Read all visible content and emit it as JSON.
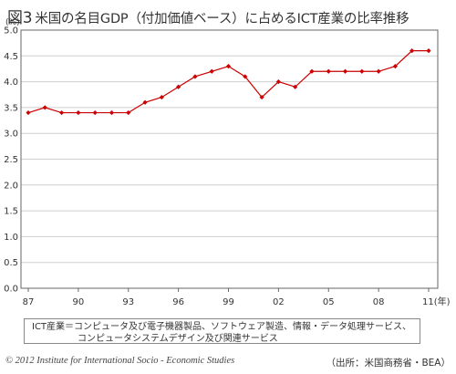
{
  "header": {
    "figure_no": "図3",
    "title": "米国の名目GDP（付加価値ベース）に占めるICT産業の比率推移"
  },
  "chart_data": {
    "type": "line",
    "title": "米国の名目GDP（付加価値ベース）に占めるICT産業の比率推移",
    "ylabel": "(%)",
    "xlabel": "(年)",
    "ylim": [
      0,
      5.0
    ],
    "ytick_labels": [
      "0.0",
      "0.5",
      "1.0",
      "1.5",
      "2.0",
      "2.5",
      "3.0",
      "3.5",
      "4.0",
      "4.5",
      "5.0"
    ],
    "x_years": [
      1987,
      1988,
      1989,
      1990,
      1991,
      1992,
      1993,
      1994,
      1995,
      1996,
      1997,
      1998,
      1999,
      2000,
      2001,
      2002,
      2003,
      2004,
      2005,
      2006,
      2007,
      2008,
      2009,
      2010,
      2011
    ],
    "xtick_labels": [
      "87",
      "90",
      "93",
      "96",
      "99",
      "02",
      "05",
      "08",
      "11"
    ],
    "last_xtick_suffix": "(年)",
    "values": [
      3.4,
      3.5,
      3.4,
      3.4,
      3.4,
      3.4,
      3.4,
      3.6,
      3.7,
      3.9,
      4.1,
      4.2,
      4.3,
      4.1,
      3.7,
      4.0,
      3.9,
      4.2,
      4.2,
      4.2,
      4.2,
      4.2,
      4.3,
      4.6,
      4.6
    ],
    "line_color": "#cc0000",
    "grid": true
  },
  "note": {
    "line1": "ICT産業＝コンピュータ及び電子機器製品、ソフトウェア製造、情報・データ処理サービス、",
    "line2": "コンピュータシステムデザイン及び関連サービス"
  },
  "footer": {
    "copyright": "© 2012  Institute for International Socio - Economic Studies",
    "source": "（出所：米国商務省・BEA）"
  }
}
